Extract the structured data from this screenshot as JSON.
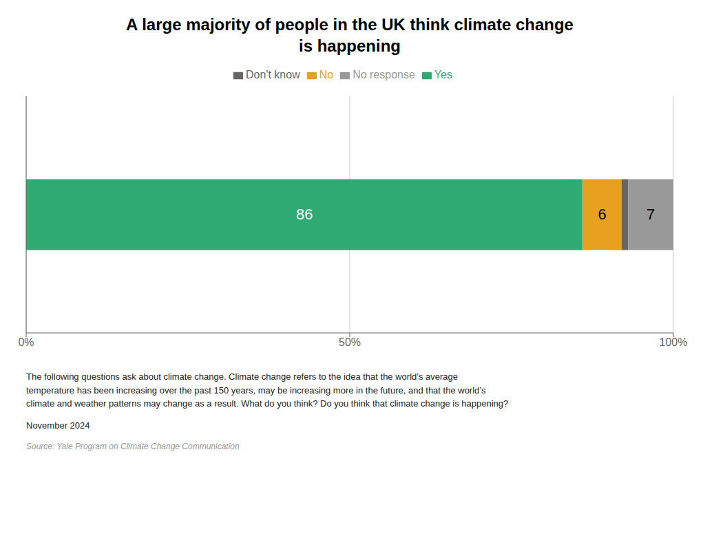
{
  "chart_data": {
    "type": "bar",
    "orientation": "horizontal",
    "stacked": true,
    "title": "A large majority of people in the UK think climate change\nis happening",
    "categories": [
      null
    ],
    "series": [
      {
        "name": "Yes",
        "color": "#2EAA72",
        "values": [
          86
        ]
      },
      {
        "name": "No",
        "color": "#E8A020",
        "values": [
          6
        ]
      },
      {
        "name": "Don't know",
        "color": "#666666",
        "values": [
          1
        ],
        "value_labels": [
          null
        ]
      },
      {
        "name": "No response",
        "color": "#999999",
        "values": [
          7
        ]
      }
    ],
    "xlim": [
      0,
      100
    ],
    "xticks": [
      {
        "value": 0,
        "label": "0%"
      },
      {
        "value": 50,
        "label": "50%"
      },
      {
        "value": 100,
        "label": "100%"
      }
    ],
    "grid": true,
    "legend": "top",
    "data_labels": true,
    "tick_labels": "x",
    "annotations": [
      "The following questions ask about climate change. Climate change refers to the idea that the world’s average",
      "temperature has been increasing over the past 150 years, may be increasing more in the future, and that the world’s",
      "climate and weather patterns may change as a result. What do you think? Do you think that climate change is happening?",
      "November 2024",
      "Source: Yale Program on Climate Change Communication"
    ]
  }
}
